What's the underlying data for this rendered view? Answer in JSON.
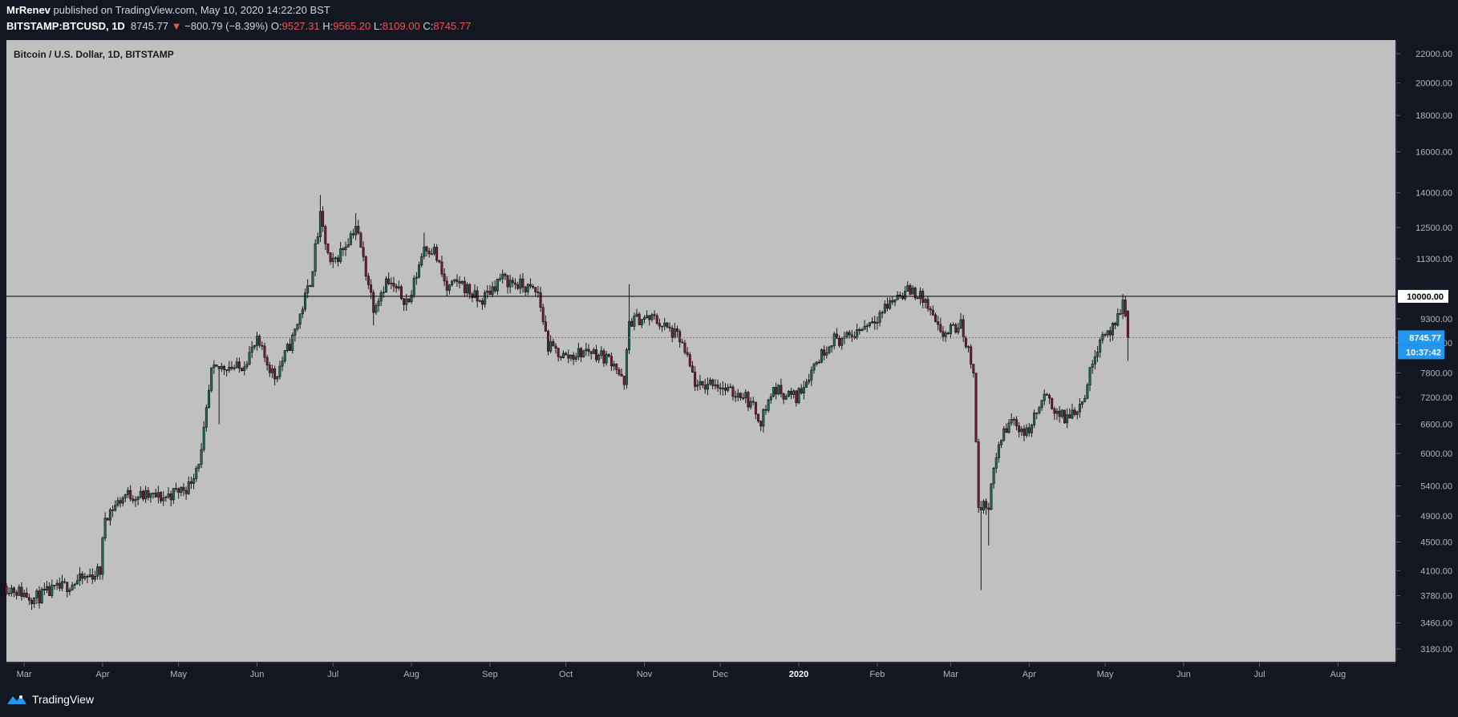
{
  "header": {
    "author": "MrRenev",
    "published_text": " published on TradingView.com, May 10, 2020 14:22:20 BST",
    "symbol": "BITSTAMP:BTCUSD, 1D",
    "last": "8745.77",
    "change_arrow": "▼",
    "change": "−800.79 (−8.39%)",
    "open_label": "O:",
    "open": "9527.31",
    "high_label": "H:",
    "high": "9565.20",
    "low_label": "L:",
    "low": "8109.00",
    "close_label": "C:",
    "close": "8745.77"
  },
  "footer": {
    "brand": "TradingView"
  },
  "colors": {
    "background": "#131722",
    "plot": "#c0c0c0",
    "candle": "#1a1a1a",
    "accent": "#2196f3",
    "down": "#ef5350"
  },
  "chart_data": {
    "type": "candlestick",
    "title": "Bitcoin / U.S. Dollar, 1D, BITSTAMP",
    "y_scale": "log",
    "ylim": [
      3050,
      23000
    ],
    "y_ticks": [
      "22000.00",
      "20000.00",
      "18000.00",
      "16000.00",
      "14000.00",
      "12500.00",
      "11300.00",
      "10000.00",
      "9300.00",
      "8600.00",
      "7800.00",
      "7200.00",
      "6600.00",
      "6000.00",
      "5400.00",
      "4900.00",
      "4500.00",
      "4100.00",
      "3780.00",
      "3460.00",
      "3180.00"
    ],
    "x_ticks": [
      {
        "label": "Mar",
        "date": "2019-03-01"
      },
      {
        "label": "Apr",
        "date": "2019-04-01"
      },
      {
        "label": "May",
        "date": "2019-05-01"
      },
      {
        "label": "Jun",
        "date": "2019-06-01"
      },
      {
        "label": "Jul",
        "date": "2019-07-01"
      },
      {
        "label": "Aug",
        "date": "2019-08-01"
      },
      {
        "label": "Sep",
        "date": "2019-09-01"
      },
      {
        "label": "Oct",
        "date": "2019-10-01"
      },
      {
        "label": "Nov",
        "date": "2019-11-01"
      },
      {
        "label": "Dec",
        "date": "2019-12-01"
      },
      {
        "label": "2020",
        "date": "2020-01-01",
        "bold": true
      },
      {
        "label": "Feb",
        "date": "2020-02-01"
      },
      {
        "label": "Mar",
        "date": "2020-03-01"
      },
      {
        "label": "Apr",
        "date": "2020-04-01"
      },
      {
        "label": "May",
        "date": "2020-05-01"
      },
      {
        "label": "Jun",
        "date": "2020-06-01"
      },
      {
        "label": "Jul",
        "date": "2020-07-01"
      },
      {
        "label": "Aug",
        "date": "2020-08-01"
      }
    ],
    "x_range": [
      "2019-02-22",
      "2020-08-24"
    ],
    "horizontal_line": {
      "value": 10000,
      "label": "10000.00"
    },
    "last_price": {
      "value": 8745.77,
      "label": "8745.77",
      "countdown": "10:37:42"
    },
    "price_path": [
      [
        "2019-02-22",
        3900
      ],
      [
        "2019-03-05",
        3750
      ],
      [
        "2019-03-15",
        3870
      ],
      [
        "2019-03-25",
        4000
      ],
      [
        "2019-03-31",
        4100
      ],
      [
        "2019-04-02",
        4900
      ],
      [
        "2019-04-10",
        5250
      ],
      [
        "2019-04-25",
        5200
      ],
      [
        "2019-05-05",
        5400
      ],
      [
        "2019-05-10",
        6000
      ],
      [
        "2019-05-14",
        7800
      ],
      [
        "2019-05-20",
        8000
      ],
      [
        "2019-05-25",
        7900
      ],
      [
        "2019-06-01",
        8600
      ],
      [
        "2019-06-08",
        7700
      ],
      [
        "2019-06-15",
        8700
      ],
      [
        "2019-06-22",
        10500
      ],
      [
        "2019-06-26",
        12900
      ],
      [
        "2019-06-30",
        11000
      ],
      [
        "2019-07-05",
        11700
      ],
      [
        "2019-07-10",
        12600
      ],
      [
        "2019-07-17",
        9700
      ],
      [
        "2019-07-22",
        10500
      ],
      [
        "2019-07-31",
        9800
      ],
      [
        "2019-08-06",
        11800
      ],
      [
        "2019-08-10",
        11600
      ],
      [
        "2019-08-15",
        10200
      ],
      [
        "2019-08-20",
        10500
      ],
      [
        "2019-08-28",
        9800
      ],
      [
        "2019-09-05",
        10600
      ],
      [
        "2019-09-15",
        10300
      ],
      [
        "2019-09-20",
        10100
      ],
      [
        "2019-09-24",
        8500
      ],
      [
        "2019-10-01",
        8200
      ],
      [
        "2019-10-10",
        8400
      ],
      [
        "2019-10-20",
        8100
      ],
      [
        "2019-10-24",
        7450
      ],
      [
        "2019-10-26",
        9200
      ],
      [
        "2019-10-30",
        9300
      ],
      [
        "2019-11-05",
        9300
      ],
      [
        "2019-11-15",
        8700
      ],
      [
        "2019-11-22",
        7400
      ],
      [
        "2019-11-28",
        7600
      ],
      [
        "2019-12-05",
        7300
      ],
      [
        "2019-12-10",
        7300
      ],
      [
        "2019-12-17",
        6700
      ],
      [
        "2019-12-22",
        7400
      ],
      [
        "2019-12-31",
        7200
      ],
      [
        "2020-01-07",
        8000
      ],
      [
        "2020-01-14",
        8700
      ],
      [
        "2020-01-20",
        8700
      ],
      [
        "2020-02-01",
        9400
      ],
      [
        "2020-02-10",
        10100
      ],
      [
        "2020-02-15",
        10200
      ],
      [
        "2020-02-20",
        9800
      ],
      [
        "2020-02-26",
        8800
      ],
      [
        "2020-03-05",
        9100
      ],
      [
        "2020-03-10",
        7900
      ],
      [
        "2020-03-12",
        5000
      ],
      [
        "2020-03-16",
        5100
      ],
      [
        "2020-03-20",
        6200
      ],
      [
        "2020-03-25",
        6700
      ],
      [
        "2020-03-31",
        6400
      ],
      [
        "2020-04-07",
        7200
      ],
      [
        "2020-04-15",
        6700
      ],
      [
        "2020-04-22",
        7100
      ],
      [
        "2020-04-29",
        8800
      ],
      [
        "2020-05-05",
        9000
      ],
      [
        "2020-05-08",
        9800
      ],
      [
        "2020-05-09",
        9550
      ],
      [
        "2020-05-10",
        8745.77
      ]
    ],
    "wick_extremes": [
      [
        "2019-06-26",
        13900
      ],
      [
        "2019-07-10",
        13100
      ],
      [
        "2019-08-06",
        12300
      ],
      [
        "2019-10-26",
        10400
      ],
      [
        "2020-02-13",
        10500
      ],
      [
        "2020-05-08",
        10000
      ],
      [
        "2019-03-05",
        3700
      ],
      [
        "2019-05-17",
        6600
      ],
      [
        "2019-07-17",
        9100
      ],
      [
        "2019-12-17",
        6450
      ],
      [
        "2020-03-13",
        3850
      ],
      [
        "2020-03-16",
        4450
      ],
      [
        "2020-05-10",
        8109
      ]
    ]
  }
}
